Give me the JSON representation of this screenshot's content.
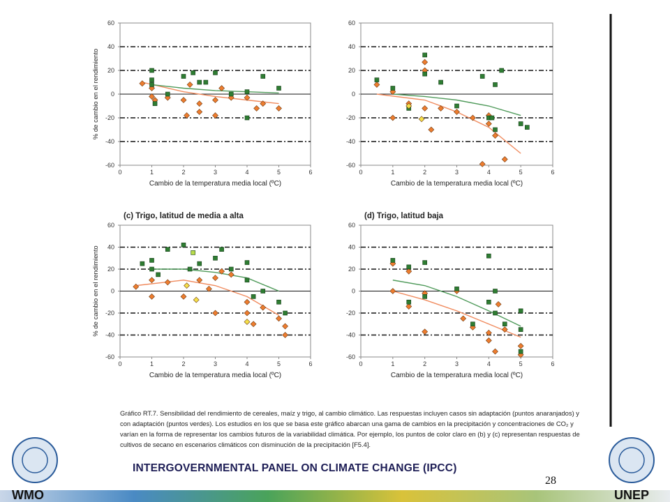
{
  "chart_data": [
    {
      "type": "scatter",
      "ylabel": "% de cambio en el rendimiento",
      "xlabel": "Cambio de la temperatura media local (ºC)",
      "xlim": [
        0,
        6
      ],
      "ylim": [
        -60,
        60
      ],
      "xticks": [
        0,
        1,
        2,
        3,
        4,
        5,
        6
      ],
      "yticks": [
        -60,
        -40,
        -20,
        0,
        20,
        40,
        60
      ],
      "grid": true,
      "series": [
        {
          "color": "#ee7d2f",
          "marker": "diamond",
          "x": [
            0.7,
            1,
            1,
            1.1,
            1.5,
            2,
            2.1,
            2.2,
            2.5,
            2.5,
            3,
            3,
            3.2,
            3.5,
            4,
            4.3,
            4.5,
            5
          ],
          "values": [
            9,
            5,
            -2,
            -5,
            -3,
            -5,
            -18,
            8,
            -8,
            -15,
            -5,
            -18,
            5,
            -3,
            -3,
            -12,
            -8,
            -12
          ]
        },
        {
          "color": "#2e7d32",
          "marker": "square",
          "x": [
            1,
            1,
            1,
            1.1,
            1.5,
            2,
            2.3,
            2.5,
            2.7,
            3,
            3.5,
            4,
            4,
            4.5,
            5
          ],
          "values": [
            20,
            12,
            8,
            -8,
            0,
            15,
            18,
            10,
            10,
            18,
            0,
            2,
            -20,
            15,
            5
          ]
        }
      ],
      "trend_lines": [
        {
          "color": "#f08a5d",
          "x": [
            0.7,
            2,
            3,
            4,
            5
          ],
          "values": [
            10,
            2,
            -2,
            -5,
            -8
          ]
        },
        {
          "color": "#4f9a5a",
          "x": [
            1,
            2,
            3,
            4,
            5
          ],
          "values": [
            8,
            5,
            3,
            2,
            1
          ]
        }
      ]
    },
    {
      "type": "scatter",
      "xlabel": "Cambio de la temperatura media local (ºC)",
      "xlim": [
        0,
        6
      ],
      "ylim": [
        -60,
        60
      ],
      "xticks": [
        0,
        1,
        2,
        3,
        4,
        5,
        6
      ],
      "yticks": [
        -60,
        -40,
        -20,
        0,
        20,
        40,
        60
      ],
      "grid": true,
      "series": [
        {
          "color": "#ee7d2f",
          "marker": "diamond",
          "x": [
            0.5,
            1,
            1,
            1.5,
            2,
            2,
            2,
            2.2,
            2.5,
            3,
            3.5,
            3.8,
            4,
            4,
            4.2,
            4.5
          ],
          "values": [
            8,
            -20,
            2,
            -8,
            27,
            20,
            -12,
            -30,
            -12,
            -15,
            -20,
            -59,
            -25,
            -18,
            -35,
            -55
          ]
        },
        {
          "color": "#2e7d32",
          "marker": "square",
          "x": [
            0.5,
            1,
            1.5,
            2,
            2,
            2.5,
            3,
            3.8,
            4,
            4.1,
            4.2,
            4.2,
            4.4,
            5,
            5.2
          ],
          "values": [
            12,
            5,
            -12,
            33,
            17,
            10,
            -10,
            15,
            -20,
            -20,
            -30,
            8,
            20,
            -25,
            -28
          ]
        },
        {
          "color": "#f5e04a",
          "marker": "diamond",
          "x": [
            1.5,
            1.9
          ],
          "values": [
            -10,
            -21
          ]
        }
      ],
      "trend_lines": [
        {
          "color": "#f08a5d",
          "x": [
            0.5,
            2,
            3,
            4,
            5
          ],
          "values": [
            0,
            -5,
            -15,
            -28,
            -50
          ]
        },
        {
          "color": "#4f9a5a",
          "x": [
            1,
            2,
            3,
            4,
            5
          ],
          "values": [
            0,
            -2,
            -5,
            -10,
            -18
          ]
        }
      ]
    },
    {
      "type": "scatter",
      "title": "(c) Trigo, latitud de media a alta",
      "ylabel": "% de cambio en el rendimiento",
      "xlabel": "Cambio de la temperatura media local (ºC)",
      "xlim": [
        0,
        6
      ],
      "ylim": [
        -60,
        60
      ],
      "xticks": [
        0,
        1,
        2,
        3,
        4,
        5,
        6
      ],
      "yticks": [
        -60,
        -40,
        -20,
        0,
        20,
        40,
        60
      ],
      "grid": true,
      "series": [
        {
          "color": "#ee7d2f",
          "marker": "diamond",
          "x": [
            0.5,
            1,
            1,
            1.5,
            2,
            2.5,
            2.8,
            3,
            3,
            3.2,
            3.5,
            4,
            4,
            4.2,
            4.5,
            5,
            5.2,
            5.2
          ],
          "values": [
            4,
            -5,
            10,
            8,
            -5,
            10,
            2,
            12,
            -20,
            18,
            15,
            -10,
            -20,
            -30,
            -15,
            -25,
            -40,
            -32
          ]
        },
        {
          "color": "#2e7d32",
          "marker": "square",
          "x": [
            0.7,
            1,
            1,
            1.2,
            1.5,
            2,
            2.2,
            2.5,
            3,
            3.2,
            3.5,
            4,
            4,
            4.2,
            4.5,
            5,
            5.2
          ],
          "values": [
            25,
            28,
            20,
            15,
            38,
            42,
            20,
            25,
            30,
            38,
            20,
            26,
            10,
            -5,
            0,
            -10,
            -20
          ]
        },
        {
          "color": "#f5e04a",
          "marker": "diamond",
          "x": [
            2.1,
            2.4,
            4
          ],
          "values": [
            5,
            -8,
            -28
          ]
        },
        {
          "color": "#b9dc4a",
          "marker": "square",
          "x": [
            2.3
          ],
          "values": [
            35
          ]
        }
      ],
      "trend_lines": [
        {
          "color": "#f08a5d",
          "x": [
            0.5,
            2,
            3,
            4,
            5
          ],
          "values": [
            5,
            10,
            5,
            -5,
            -22
          ]
        },
        {
          "color": "#4f9a5a",
          "x": [
            1,
            2,
            3,
            4,
            5
          ],
          "values": [
            20,
            20,
            17,
            12,
            0
          ]
        }
      ]
    },
    {
      "type": "scatter",
      "title": "(d) Trigo, latitud baja",
      "xlabel": "Cambio de la temperatura media local (ºC)",
      "xlim": [
        0,
        6
      ],
      "ylim": [
        -60,
        60
      ],
      "xticks": [
        0,
        1,
        2,
        3,
        4,
        5,
        6
      ],
      "yticks": [
        -60,
        -40,
        -20,
        0,
        20,
        40,
        60
      ],
      "grid": true,
      "series": [
        {
          "color": "#ee7d2f",
          "marker": "diamond",
          "x": [
            1,
            1,
            1.5,
            1.5,
            2,
            2,
            3,
            3.2,
            3.5,
            4,
            4,
            4.2,
            4.3,
            4.5,
            5,
            5
          ],
          "values": [
            25,
            0,
            18,
            -14,
            -2,
            -37,
            0,
            -25,
            -33,
            -38,
            -45,
            -55,
            -12,
            -35,
            -50,
            -58
          ]
        },
        {
          "color": "#2e7d32",
          "marker": "square",
          "x": [
            1,
            1.5,
            1.5,
            2,
            2,
            3,
            3.5,
            4,
            4,
            4.2,
            4.2,
            4.5,
            5,
            5,
            5
          ],
          "values": [
            28,
            22,
            -10,
            26,
            -5,
            2,
            -30,
            32,
            -10,
            0,
            -20,
            -30,
            -18,
            -35,
            -55
          ]
        }
      ],
      "trend_lines": [
        {
          "color": "#f08a5d",
          "x": [
            1,
            2,
            3,
            4,
            5
          ],
          "values": [
            0,
            -8,
            -18,
            -30,
            -42
          ]
        },
        {
          "color": "#4f9a5a",
          "x": [
            1,
            2,
            3,
            4,
            5
          ],
          "values": [
            10,
            5,
            -5,
            -18,
            -32
          ]
        }
      ]
    }
  ],
  "caption": "Gráfico RT.7. Sensibilidad del rendimiento de cereales, maíz y trigo, al cambio climático. Las respuestas incluyen casos sin adaptación (puntos anaranjados) y con adaptación (puntos verdes). Los estudios en los que se basa este gráfico abarcan una gama de cambios en la precipitación y concentraciones de CO₂ y varían en la forma de representar los cambios futuros de la variabilidad climática. Por ejemplo, los puntos de color claro en (b) y (c) representan respuestas de cultivos de secano en escenarios climáticos con disminución de la precipitación [F5.4].",
  "footer": {
    "title": "INTERGOVERNMENTAL PANEL ON CLIMATE CHANGE (IPCC)",
    "page_number": "28",
    "left_logo": "WMO",
    "right_logo": "UNEP"
  }
}
